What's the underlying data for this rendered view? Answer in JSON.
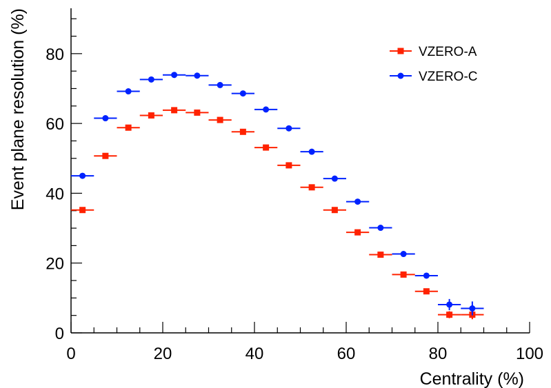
{
  "chart_data": {
    "type": "scatter",
    "xlabel": "Centrality (%)",
    "ylabel": "Event plane resolution (%)",
    "xlim": [
      0,
      100
    ],
    "ylim": [
      0,
      93
    ],
    "x_ticks": [
      "0",
      "20",
      "40",
      "60",
      "80",
      "100"
    ],
    "y_ticks": [
      "0",
      "20",
      "40",
      "60",
      "80"
    ],
    "grid": false,
    "legend_position": "top-right",
    "x": [
      2.5,
      7.5,
      12.5,
      17.5,
      22.5,
      27.5,
      32.5,
      37.5,
      42.5,
      47.5,
      52.5,
      57.5,
      62.5,
      67.5,
      72.5,
      77.5,
      82.5,
      87.5
    ],
    "x_error": 2.5,
    "series": [
      {
        "name": "VZERO-A",
        "marker": "square",
        "color": "#ff2200",
        "values": [
          35.2,
          50.7,
          58.8,
          62.3,
          63.8,
          63.1,
          61.0,
          57.6,
          53.1,
          48.0,
          41.7,
          35.2,
          28.8,
          22.4,
          16.7,
          11.9,
          5.2,
          5.2
        ],
        "y_error": [
          0.4,
          0.4,
          0.4,
          0.4,
          0.4,
          0.4,
          0.4,
          0.4,
          0.4,
          0.4,
          0.4,
          0.4,
          0.4,
          0.4,
          0.4,
          0.6,
          1.0,
          1.3
        ]
      },
      {
        "name": "VZERO-C",
        "marker": "circle",
        "color": "#0022ff",
        "values": [
          45.0,
          61.5,
          69.2,
          72.6,
          73.9,
          73.7,
          71.0,
          68.6,
          64.0,
          58.6,
          51.9,
          44.2,
          37.6,
          30.1,
          22.6,
          16.4,
          8.1,
          7.0
        ],
        "y_error": [
          0.4,
          0.4,
          0.4,
          0.4,
          0.4,
          0.4,
          0.4,
          0.4,
          0.4,
          0.4,
          0.4,
          0.4,
          0.4,
          0.4,
          0.4,
          0.6,
          1.6,
          2.0
        ]
      }
    ]
  }
}
